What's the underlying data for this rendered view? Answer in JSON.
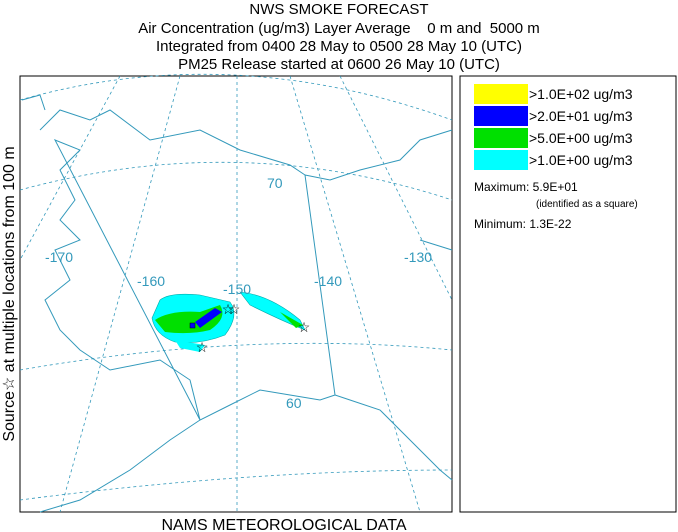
{
  "header": {
    "title": "NWS SMOKE FORECAST",
    "lines": [
      "Air Concentration (ug/m3) Layer Average    0 m and  5000 m",
      "Integrated from 0400 28 May to 0500 28 May 10 (UTC)",
      "PM25 Release started at 0600 26 May 10 (UTC)"
    ]
  },
  "side_label": "Source☆ at multiple locations from 100 m",
  "footer": "NAMS METEOROLOGICAL DATA",
  "map": {
    "longitude_labels": [
      "-170",
      "-160",
      "-150",
      "-140",
      "-130"
    ],
    "latitude_labels": [
      "70",
      "60"
    ]
  },
  "legend": {
    "items": [
      {
        "label": ">1.0E+02 ug/m3",
        "color": "#ffff00"
      },
      {
        "label": ">2.0E+01 ug/m3",
        "color": "#0000ff"
      },
      {
        "label": ">5.0E+00 ug/m3",
        "color": "#00e000"
      },
      {
        "label": ">1.0E+00 ug/m3",
        "color": "#00ffff"
      }
    ],
    "maximum": "Maximum: 5.9E+01",
    "maximum_note": "(identified as a square)",
    "minimum": "Minimum: 1.3E-22"
  }
}
